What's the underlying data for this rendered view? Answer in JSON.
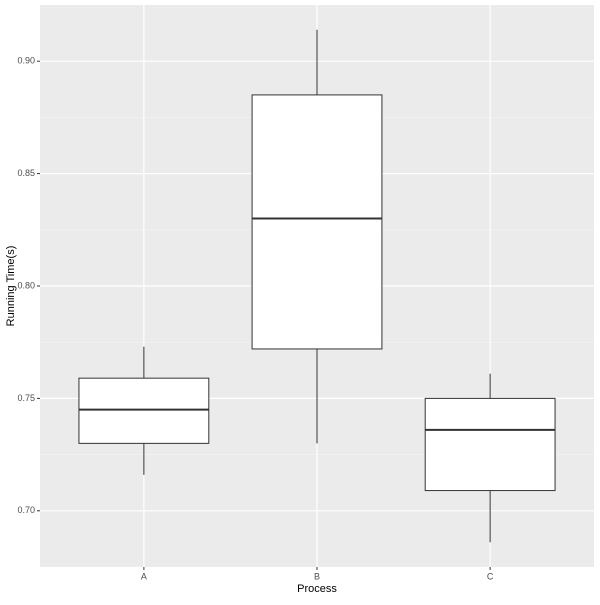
{
  "chart_data": {
    "type": "boxplot",
    "x_label": "Process",
    "y_label": "Running Time(s)",
    "categories": [
      "A",
      "B",
      "C"
    ],
    "whisker_low": [
      0.716,
      0.73,
      0.686
    ],
    "q1": [
      0.73,
      0.772,
      0.709
    ],
    "median": [
      0.745,
      0.83,
      0.736
    ],
    "q3": [
      0.759,
      0.885,
      0.75
    ],
    "whisker_high": [
      0.773,
      0.914,
      0.761
    ],
    "ylim": [
      0.675,
      0.925
    ],
    "yticks": [
      {
        "value": 0.7,
        "label": "0.70"
      },
      {
        "value": 0.75,
        "label": "0.75"
      },
      {
        "value": 0.8,
        "label": "0.80"
      },
      {
        "value": 0.85,
        "label": "0.85"
      },
      {
        "value": 0.9,
        "label": "0.90"
      }
    ],
    "grid": true,
    "box_color": "#ffffff",
    "line_color": "#333333"
  }
}
